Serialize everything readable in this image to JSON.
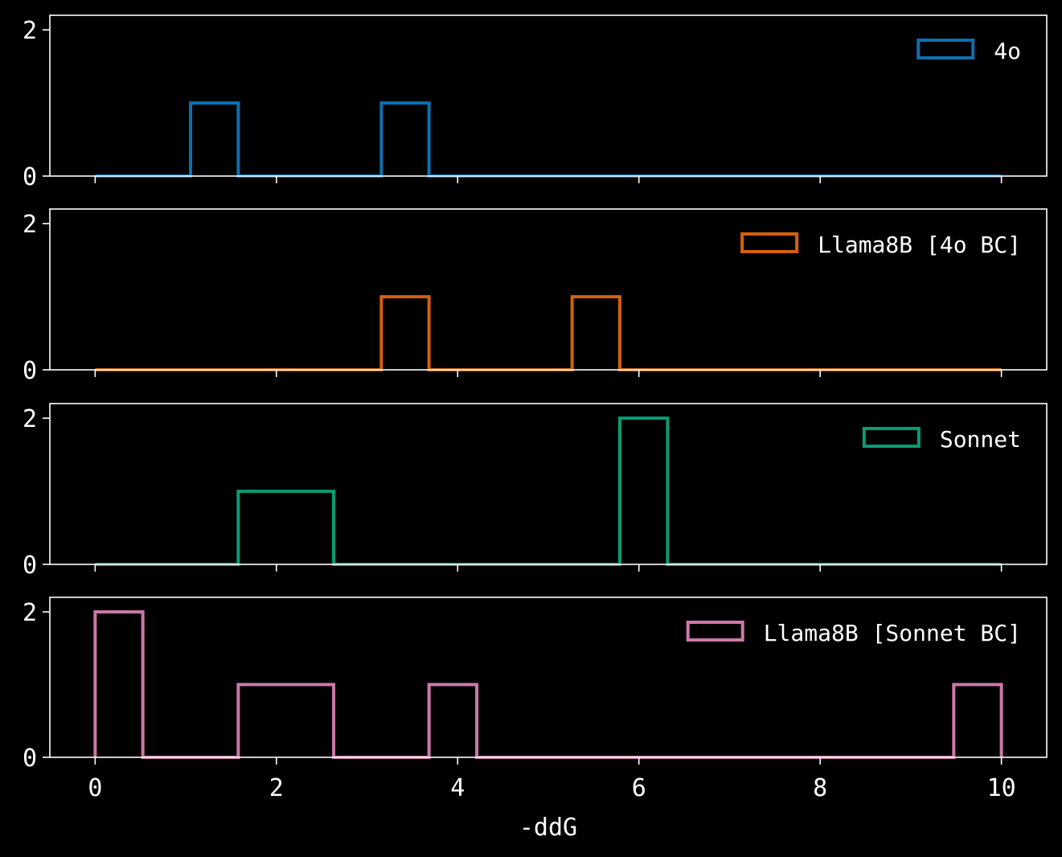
{
  "chart_data": {
    "type": "histogram",
    "layout": "stacked-subplots",
    "shared_x": true,
    "xlabel": "-ddG",
    "xlim": [
      -0.5,
      10.5
    ],
    "ylim": [
      0,
      2.2
    ],
    "xticks": [
      "0",
      "2",
      "4",
      "6",
      "8",
      "10"
    ],
    "yticks": [
      "0",
      "2"
    ],
    "bin_edges": [
      0,
      0.526,
      1.053,
      1.579,
      2.105,
      2.632,
      3.158,
      3.684,
      4.211,
      4.737,
      5.263,
      5.789,
      6.316,
      6.842,
      7.368,
      7.895,
      8.421,
      8.947,
      9.474,
      10
    ],
    "legend_position": "upper-right",
    "background": "#000000",
    "series": [
      {
        "name": "4o",
        "color": "#0f6fb0",
        "counts": [
          0,
          0,
          1,
          0,
          0,
          0,
          1,
          0,
          0,
          0,
          0,
          0,
          0,
          0,
          0,
          0,
          0,
          0,
          0
        ]
      },
      {
        "name": "Llama8B [4o BC]",
        "color": "#d5600e",
        "counts": [
          0,
          0,
          0,
          0,
          0,
          0,
          1,
          0,
          0,
          0,
          1,
          0,
          0,
          0,
          0,
          0,
          0,
          0,
          0
        ]
      },
      {
        "name": "Sonnet",
        "color": "#079d72",
        "counts": [
          0,
          0,
          0,
          1,
          1,
          0,
          0,
          0,
          0,
          0,
          0,
          2,
          0,
          0,
          0,
          0,
          0,
          0,
          0
        ]
      },
      {
        "name": "Llama8B [Sonnet BC]",
        "color": "#cc79a7",
        "counts": [
          2,
          0,
          0,
          1,
          1,
          0,
          0,
          1,
          0,
          0,
          0,
          0,
          0,
          0,
          0,
          0,
          0,
          0,
          1
        ]
      }
    ]
  }
}
